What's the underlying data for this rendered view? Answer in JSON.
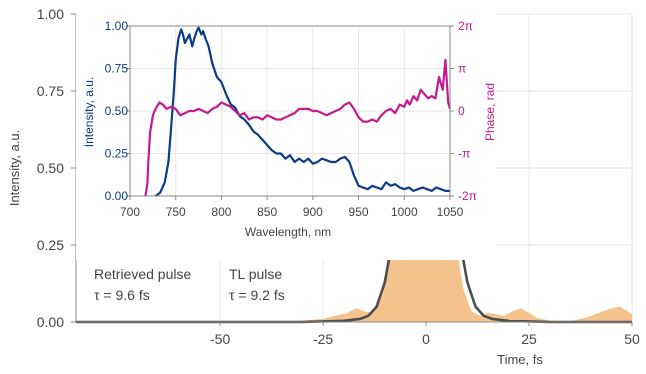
{
  "chart_data": [
    {
      "type": "area",
      "xlabel": "Time, fs",
      "ylabel": "Intensity, a.u.",
      "xlim": [
        -85,
        50
      ],
      "ylim": [
        0,
        1.0
      ],
      "xticks": [
        -50,
        -25,
        0,
        25,
        50
      ],
      "xtick_labels": [
        "-50",
        "-25",
        "0",
        "25",
        "50"
      ],
      "yticks": [
        0,
        0.25,
        0.5,
        0.75,
        1.0
      ],
      "ytick_labels": [
        "0.00",
        "0.25",
        "0.50",
        "0.75",
        "1.00"
      ],
      "grid": true,
      "legend_placement": "bottom-left",
      "series": [
        {
          "name": "Retrieved pulse",
          "annotation": "τ = 9.6 fs",
          "color": "#f5c48e",
          "style": "filled-area",
          "x": [
            -85,
            -40,
            -30,
            -25,
            -22,
            -19,
            -17,
            -15,
            -13,
            -11,
            -9,
            -7,
            -5,
            -3,
            -1,
            0,
            1,
            3,
            5,
            7,
            9,
            11,
            13,
            15,
            17,
            19,
            21,
            23,
            25,
            27,
            30,
            33,
            36,
            39,
            42,
            45,
            47,
            49,
            50
          ],
          "y": [
            0,
            0,
            0.005,
            0.01,
            0.02,
            0.03,
            0.045,
            0.035,
            0.03,
            0.1,
            0.2,
            0.36,
            0.56,
            0.76,
            0.9,
            0.92,
            0.9,
            0.74,
            0.5,
            0.28,
            0.11,
            0.035,
            0.02,
            0.03,
            0.025,
            0.02,
            0.035,
            0.045,
            0.03,
            0.012,
            0.005,
            0.003,
            0.005,
            0.015,
            0.03,
            0.045,
            0.05,
            0.035,
            0.025
          ]
        },
        {
          "name": "TL pulse",
          "annotation": "τ = 9.2 fs",
          "color": "#4d4d4d",
          "style": "line",
          "x": [
            -85,
            -30,
            -20,
            -16,
            -14,
            -12,
            -10,
            -8,
            -6,
            -4,
            -2,
            0,
            2,
            4,
            6,
            8,
            10,
            12,
            14,
            16,
            20,
            30,
            50
          ],
          "y": [
            0,
            0,
            0.004,
            0.01,
            0.02,
            0.05,
            0.13,
            0.28,
            0.5,
            0.74,
            0.93,
            1.0,
            0.93,
            0.74,
            0.5,
            0.28,
            0.13,
            0.05,
            0.02,
            0.01,
            0.004,
            0,
            0
          ]
        }
      ]
    },
    {
      "type": "line",
      "xlabel": "Wavelength, nm",
      "ylabel": "Intensity, a.u.",
      "y2label": "Phase, rad",
      "xlim": [
        700,
        1050
      ],
      "ylim": [
        0,
        1.0
      ],
      "y2lim": [
        -2,
        2
      ],
      "xticks": [
        700,
        750,
        800,
        850,
        900,
        950,
        1000,
        1050
      ],
      "xtick_labels": [
        "700",
        "750",
        "800",
        "850",
        "900",
        "950",
        "1000",
        "1050"
      ],
      "yticks": [
        0,
        0.25,
        0.5,
        0.75,
        1.0
      ],
      "ytick_labels": [
        "0.00",
        "0.25",
        "0.50",
        "0.75",
        "1.00"
      ],
      "y2ticks": [
        -2,
        -1,
        0,
        1,
        2
      ],
      "y2tick_labels": [
        "-2π",
        "-π",
        "0",
        "π",
        "2π"
      ],
      "y2_unit": "π rad",
      "grid": true,
      "series": [
        {
          "axis": "left",
          "color": "#0b3c87",
          "x": [
            728,
            733,
            738,
            742,
            745,
            748,
            750,
            753,
            756,
            758,
            760,
            763,
            765,
            768,
            770,
            773,
            775,
            778,
            780,
            783,
            786,
            790,
            795,
            800,
            805,
            810,
            815,
            820,
            825,
            830,
            835,
            840,
            845,
            850,
            855,
            860,
            865,
            870,
            875,
            880,
            885,
            890,
            895,
            900,
            905,
            910,
            915,
            920,
            925,
            930,
            935,
            940,
            945,
            950,
            955,
            960,
            965,
            970,
            975,
            980,
            985,
            990,
            995,
            1000,
            1005,
            1010,
            1015,
            1020,
            1025,
            1030,
            1035,
            1040,
            1045,
            1050
          ],
          "y": [
            0,
            0.02,
            0.08,
            0.2,
            0.4,
            0.62,
            0.8,
            0.93,
            0.98,
            0.95,
            0.9,
            0.93,
            0.95,
            0.88,
            0.92,
            0.97,
            0.99,
            0.95,
            0.97,
            0.92,
            0.88,
            0.78,
            0.7,
            0.67,
            0.6,
            0.54,
            0.52,
            0.47,
            0.45,
            0.42,
            0.38,
            0.36,
            0.33,
            0.3,
            0.27,
            0.25,
            0.25,
            0.22,
            0.24,
            0.2,
            0.22,
            0.2,
            0.22,
            0.19,
            0.2,
            0.22,
            0.21,
            0.2,
            0.2,
            0.22,
            0.23,
            0.2,
            0.12,
            0.06,
            0.05,
            0.04,
            0.06,
            0.05,
            0.04,
            0.08,
            0.06,
            0.07,
            0.05,
            0.04,
            0.05,
            0.03,
            0.04,
            0.05,
            0.04,
            0.03,
            0.05,
            0.04,
            0.03,
            0.03
          ]
        },
        {
          "axis": "right",
          "color": "#c31a8e",
          "x": [
            717,
            719,
            720,
            722,
            725,
            728,
            732,
            736,
            740,
            745,
            750,
            755,
            760,
            765,
            770,
            775,
            780,
            785,
            790,
            795,
            800,
            805,
            810,
            815,
            820,
            825,
            830,
            835,
            840,
            845,
            850,
            855,
            860,
            865,
            870,
            875,
            880,
            885,
            890,
            895,
            900,
            905,
            910,
            915,
            920,
            925,
            930,
            935,
            940,
            945,
            950,
            955,
            960,
            965,
            970,
            975,
            980,
            985,
            990,
            995,
            1000,
            1003,
            1006,
            1010,
            1014,
            1018,
            1022,
            1026,
            1030,
            1034,
            1038,
            1042,
            1045,
            1048,
            1050
          ],
          "y": [
            -2,
            -1.7,
            -1.2,
            -0.5,
            -0.1,
            0.05,
            0.2,
            0.15,
            0.05,
            0.1,
            0.05,
            -0.1,
            -0.05,
            0.0,
            0.0,
            0.05,
            0.0,
            -0.05,
            0.05,
            0.1,
            0.2,
            0.15,
            0.1,
            0.0,
            -0.1,
            -0.05,
            -0.2,
            -0.15,
            -0.15,
            -0.2,
            -0.1,
            -0.15,
            -0.2,
            -0.2,
            -0.15,
            -0.1,
            -0.05,
            0.05,
            0.05,
            0.05,
            0.0,
            0.0,
            -0.05,
            -0.1,
            -0.05,
            0.0,
            0.05,
            0.15,
            0.2,
            0.05,
            -0.15,
            -0.25,
            -0.25,
            -0.2,
            -0.25,
            -0.1,
            0.0,
            0.05,
            -0.05,
            0.15,
            0.1,
            0.25,
            0.15,
            0.35,
            0.25,
            0.5,
            0.4,
            0.3,
            0.35,
            0.3,
            0.8,
            0.5,
            1.2,
            0.2,
            0.05
          ]
        }
      ]
    }
  ]
}
